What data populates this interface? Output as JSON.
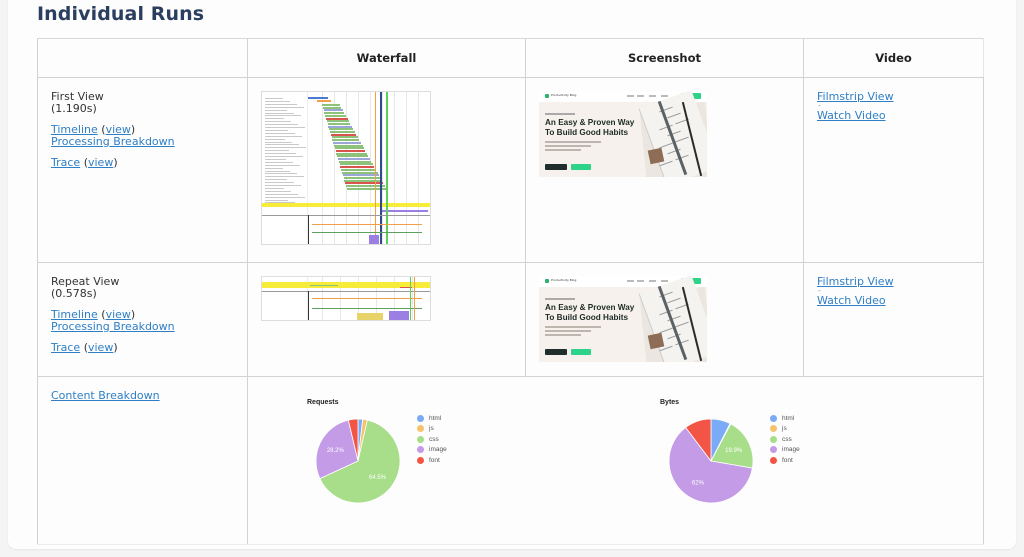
{
  "section_title": "Individual Runs",
  "table": {
    "headers": [
      "",
      "Waterfall",
      "Screenshot",
      "Video"
    ],
    "rows": [
      {
        "view_label": "First View",
        "load_time": "(1.190s)",
        "timeline_link": "Timeline",
        "timeline_view_link": "view",
        "processing_link": "Processing Breakdown",
        "trace_link": "Trace",
        "trace_view_link": "view",
        "filmstrip_link": "Filmstrip View",
        "separator": "-",
        "video_link": "Watch Video"
      },
      {
        "view_label": "Repeat View",
        "load_time": "(0.578s)",
        "timeline_link": "Timeline",
        "timeline_view_link": "view",
        "processing_link": "Processing Breakdown",
        "trace_link": "Trace",
        "trace_view_link": "view",
        "filmstrip_link": "Filmstrip View",
        "separator": "-",
        "video_link": "Watch Video"
      }
    ],
    "content_breakdown_link": "Content Breakdown"
  },
  "screenshot": {
    "brand": "Productivity Blog",
    "headline_line1": "An Easy & Proven Way",
    "headline_line2": "To Build Good Habits"
  },
  "paren_open": "(",
  "paren_close": ")",
  "colors": {
    "title": "#2a3f5f",
    "link": "#2f7fc5",
    "html": "#7baaf7",
    "js": "#f6c26b",
    "css": "#a8de8a",
    "image": "#c39be6",
    "font": "#f25545"
  },
  "chart_data": [
    {
      "type": "pie",
      "title": "Requests",
      "categories": [
        "html",
        "js",
        "css",
        "image",
        "font"
      ],
      "values": [
        1.8,
        1.8,
        64.5,
        28.2,
        3.7
      ],
      "data_labels": {
        "css": "64.5%",
        "image": "28.2%"
      },
      "legend_position": "right"
    },
    {
      "type": "pie",
      "title": "Bytes",
      "categories": [
        "html",
        "js",
        "css",
        "image",
        "font"
      ],
      "values": [
        7.5,
        0.3,
        19.9,
        62.0,
        10.3
      ],
      "data_labels": {
        "css": "19.9%",
        "image": "62%"
      },
      "legend_position": "right"
    }
  ]
}
